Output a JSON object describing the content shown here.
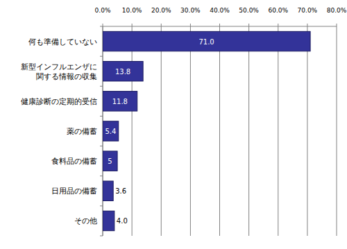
{
  "chart_data": {
    "type": "bar",
    "orientation": "horizontal",
    "categories": [
      "何も準備していない",
      "新型インフルエンザに\n関する情報の収集",
      "健康診断の定期的受信",
      "薬の備蓄",
      "食料品の備蓄",
      "日用品の備蓄",
      "その他"
    ],
    "values": [
      71.0,
      13.8,
      11.8,
      5.4,
      5,
      3.6,
      4.0
    ],
    "value_labels": [
      "71.0",
      "13.8",
      "11.8",
      "5.4",
      "5",
      "3.6",
      "4.0"
    ],
    "color": "#333399",
    "xlim": [
      0,
      80
    ],
    "xticks": [
      {
        "value": 0,
        "label": "0.0%"
      },
      {
        "value": 10,
        "label": "10.0%"
      },
      {
        "value": 20,
        "label": "20.0%"
      },
      {
        "value": 30,
        "label": "30.0%"
      },
      {
        "value": 40,
        "label": "40.0%"
      },
      {
        "value": 50,
        "label": "50.0%"
      },
      {
        "value": 60,
        "label": "60.0%"
      },
      {
        "value": 70,
        "label": "70.0%"
      },
      {
        "value": 80,
        "label": "80.0%"
      }
    ],
    "grid": true,
    "data_labels": true
  }
}
